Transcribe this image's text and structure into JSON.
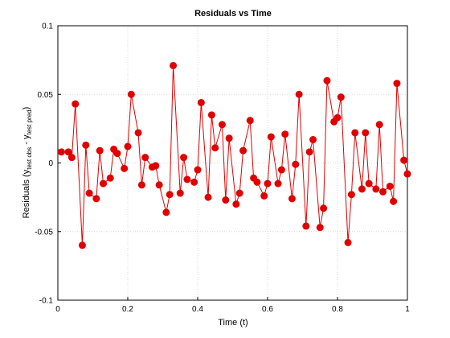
{
  "chart_data": {
    "type": "line",
    "title": "Residuals vs Time",
    "xlabel": "Time (t)",
    "ylabel": [
      "Residuals (y",
      "test obs",
      " - y",
      "test pred",
      ")"
    ],
    "x": [
      0.01,
      0.03,
      0.04,
      0.05,
      0.07,
      0.08,
      0.09,
      0.11,
      0.12,
      0.13,
      0.15,
      0.16,
      0.17,
      0.19,
      0.2,
      0.21,
      0.23,
      0.24,
      0.25,
      0.27,
      0.28,
      0.29,
      0.31,
      0.32,
      0.33,
      0.35,
      0.36,
      0.37,
      0.39,
      0.4,
      0.41,
      0.43,
      0.44,
      0.45,
      0.47,
      0.48,
      0.49,
      0.51,
      0.52,
      0.53,
      0.55,
      0.56,
      0.57,
      0.59,
      0.6,
      0.61,
      0.63,
      0.64,
      0.65,
      0.67,
      0.68,
      0.69,
      0.71,
      0.72,
      0.73,
      0.75,
      0.76,
      0.77,
      0.79,
      0.8,
      0.81,
      0.83,
      0.84,
      0.85,
      0.87,
      0.88,
      0.89,
      0.91,
      0.92,
      0.93,
      0.95,
      0.96,
      0.97,
      0.99,
      1.0
    ],
    "series": [
      {
        "name": "Residuals",
        "color": "#e00000",
        "values": [
          0.008,
          0.008,
          0.004,
          0.043,
          -0.06,
          0.013,
          -0.022,
          -0.026,
          0.009,
          -0.015,
          -0.011,
          0.01,
          0.007,
          -0.004,
          0.012,
          0.05,
          0.022,
          -0.016,
          0.004,
          -0.003,
          -0.002,
          -0.016,
          -0.036,
          -0.023,
          0.071,
          -0.022,
          0.004,
          -0.012,
          -0.014,
          -0.005,
          0.044,
          -0.025,
          0.035,
          0.011,
          0.028,
          -0.027,
          0.018,
          -0.03,
          -0.022,
          0.009,
          0.031,
          -0.011,
          -0.014,
          -0.024,
          -0.015,
          0.019,
          -0.015,
          -0.005,
          0.021,
          -0.026,
          -0.001,
          0.05,
          -0.046,
          0.008,
          0.017,
          -0.047,
          -0.033,
          0.06,
          0.03,
          0.033,
          0.048,
          -0.058,
          -0.023,
          0.022,
          -0.019,
          0.022,
          -0.015,
          -0.019,
          0.028,
          -0.021,
          -0.017,
          -0.028,
          0.058,
          0.002,
          -0.008
        ]
      }
    ],
    "xlim": [
      0,
      1
    ],
    "xticks": [
      0,
      0.2,
      0.4,
      0.6,
      0.8,
      1
    ],
    "ylim": [
      -0.1,
      0.1
    ],
    "yticks": [
      -0.1,
      -0.05,
      0,
      0.05,
      0.1
    ],
    "grid": true
  }
}
